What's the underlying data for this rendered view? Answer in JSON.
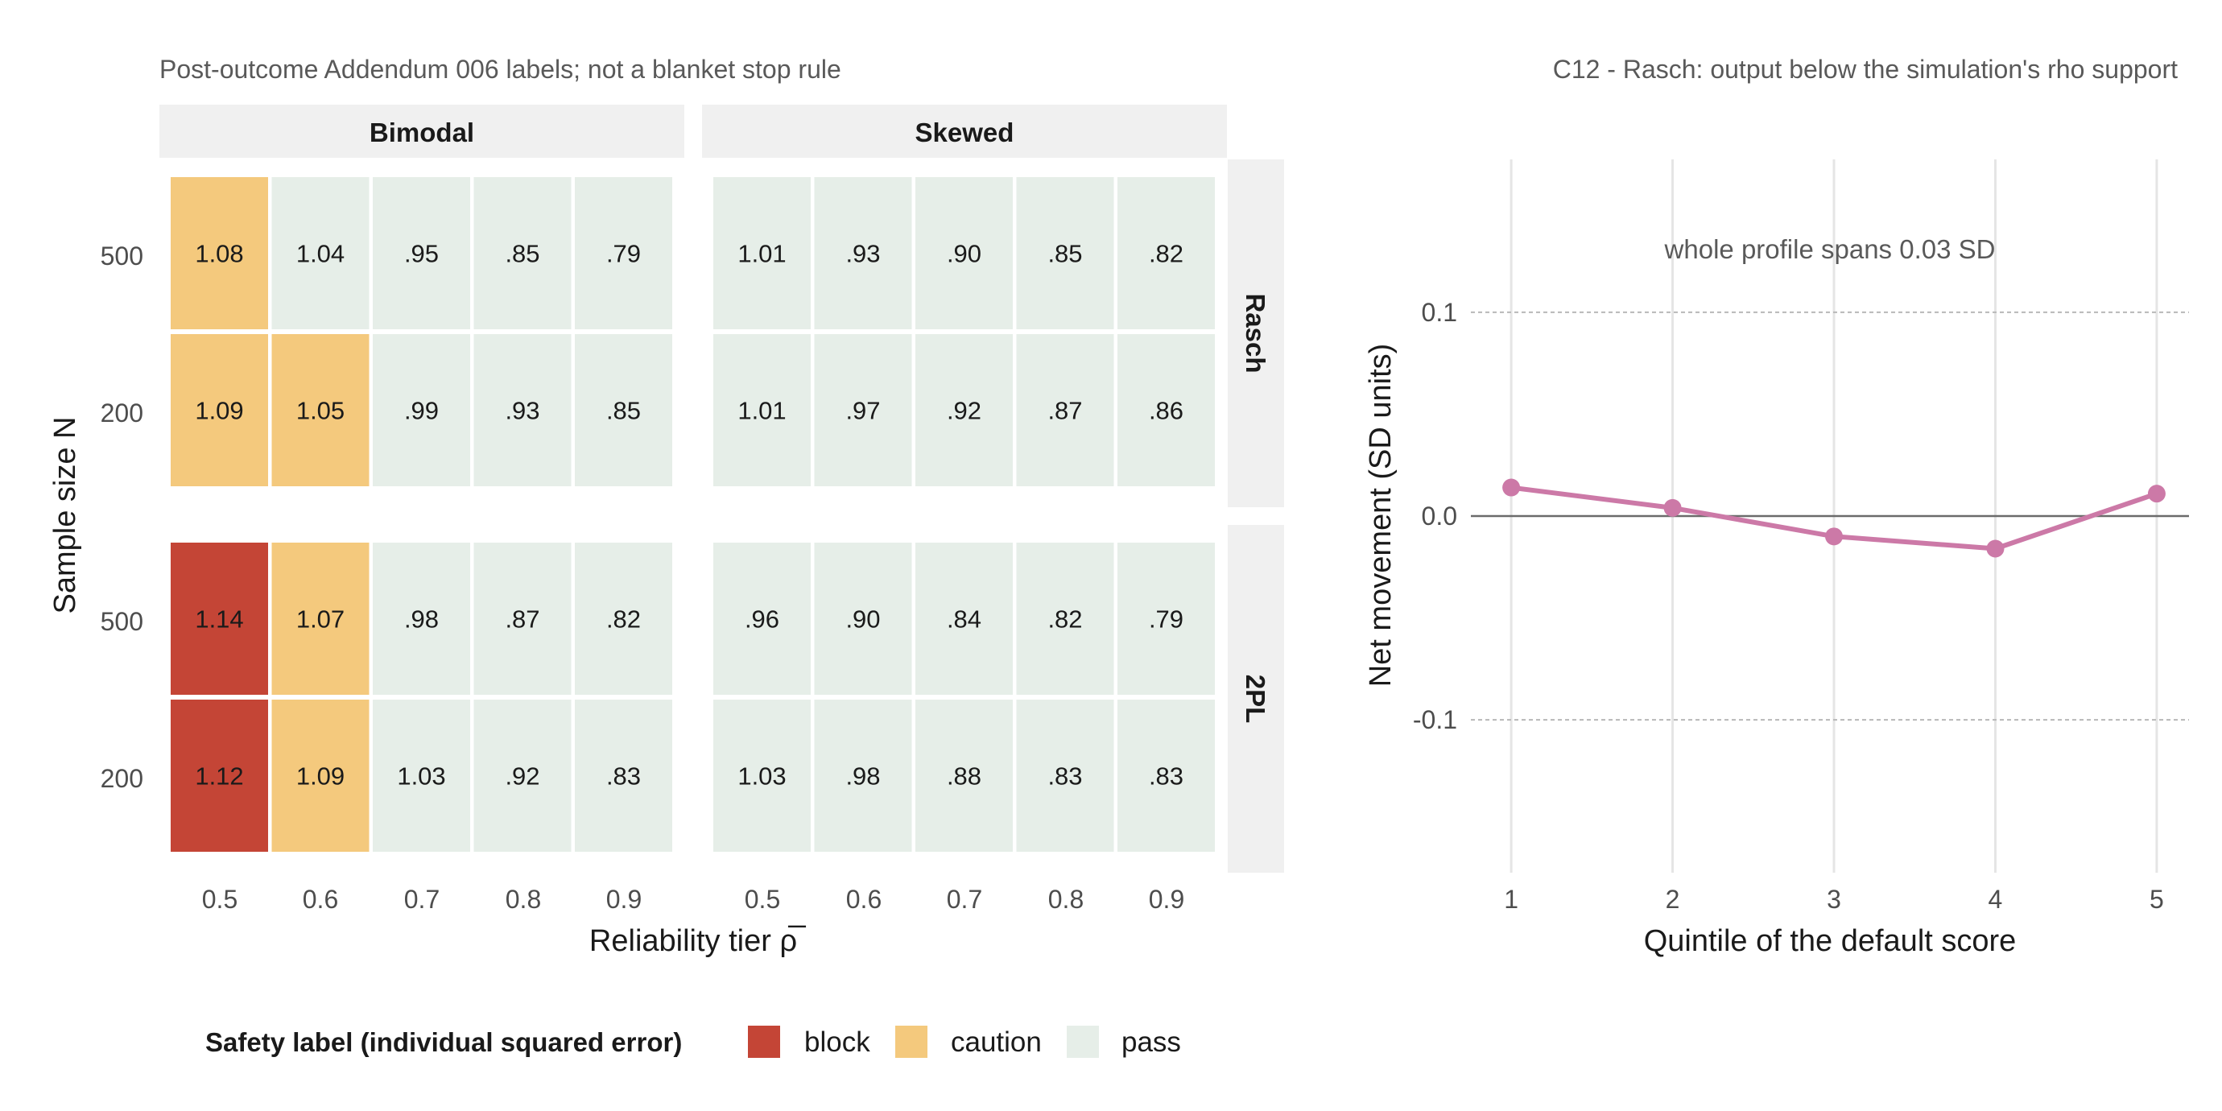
{
  "chart_data": [
    {
      "type": "heatmap",
      "subtitle": "Post-outcome Addendum 006 labels; not a blanket stop rule",
      "xlabel": "Reliability tier ρ̅",
      "ylabel": "Sample size N",
      "x_categories": [
        "0.5",
        "0.6",
        "0.7",
        "0.8",
        "0.9"
      ],
      "y_categories": [
        "500",
        "200"
      ],
      "column_facets": [
        "Bimodal",
        "Skewed"
      ],
      "row_facets": [
        "Rasch",
        "2PL"
      ],
      "legend_title": "Safety label (individual squared error)",
      "legend": [
        {
          "label": "block",
          "color": "#c44536"
        },
        {
          "label": "caution",
          "color": "#f4c97d"
        },
        {
          "label": "pass",
          "color": "#e6eee8"
        }
      ],
      "panels": [
        {
          "column": "Bimodal",
          "row": "Rasch",
          "cells": [
            {
              "N": "500",
              "values": [
                "1.08",
                "1.04",
                ".95",
                ".85",
                ".79"
              ],
              "labels": [
                "caution",
                "pass",
                "pass",
                "pass",
                "pass"
              ]
            },
            {
              "N": "200",
              "values": [
                "1.09",
                "1.05",
                ".99",
                ".93",
                ".85"
              ],
              "labels": [
                "caution",
                "caution",
                "pass",
                "pass",
                "pass"
              ]
            }
          ]
        },
        {
          "column": "Skewed",
          "row": "Rasch",
          "cells": [
            {
              "N": "500",
              "values": [
                "1.01",
                ".93",
                ".90",
                ".85",
                ".82"
              ],
              "labels": [
                "pass",
                "pass",
                "pass",
                "pass",
                "pass"
              ]
            },
            {
              "N": "200",
              "values": [
                "1.01",
                ".97",
                ".92",
                ".87",
                ".86"
              ],
              "labels": [
                "pass",
                "pass",
                "pass",
                "pass",
                "pass"
              ]
            }
          ]
        },
        {
          "column": "Bimodal",
          "row": "2PL",
          "cells": [
            {
              "N": "500",
              "values": [
                "1.14",
                "1.07",
                ".98",
                ".87",
                ".82"
              ],
              "labels": [
                "block",
                "caution",
                "pass",
                "pass",
                "pass"
              ]
            },
            {
              "N": "200",
              "values": [
                "1.12",
                "1.09",
                "1.03",
                ".92",
                ".83"
              ],
              "labels": [
                "block",
                "caution",
                "pass",
                "pass",
                "pass"
              ]
            }
          ]
        },
        {
          "column": "Skewed",
          "row": "2PL",
          "cells": [
            {
              "N": "500",
              "values": [
                ".96",
                ".90",
                ".84",
                ".82",
                ".79"
              ],
              "labels": [
                "pass",
                "pass",
                "pass",
                "pass",
                "pass"
              ]
            },
            {
              "N": "200",
              "values": [
                "1.03",
                ".98",
                ".88",
                ".83",
                ".83"
              ],
              "labels": [
                "pass",
                "pass",
                "pass",
                "pass",
                "pass"
              ]
            }
          ]
        }
      ]
    },
    {
      "type": "line",
      "subtitle": "C12 - Rasch: output below the simulation's rho support",
      "xlabel": "Quintile of the default score",
      "ylabel": "Net movement (SD units)",
      "x": [
        1,
        2,
        3,
        4,
        5
      ],
      "series": [
        {
          "values": [
            0.014,
            0.004,
            -0.01,
            -0.016,
            0.011
          ],
          "color": "#cc79a7"
        }
      ],
      "xlim": [
        0.75,
        5.2
      ],
      "ylim": [
        -0.175,
        0.175
      ],
      "y_ticks": [
        "0.1",
        "0.0",
        "-0.1"
      ],
      "y_tick_values": [
        0.1,
        0.0,
        -0.1
      ],
      "x_ticks": [
        "1",
        "2",
        "3",
        "4",
        "5"
      ],
      "reference_lines": [
        0.1,
        -0.1
      ],
      "annotation": "whole profile spans 0.03 SD",
      "grid": true
    }
  ]
}
